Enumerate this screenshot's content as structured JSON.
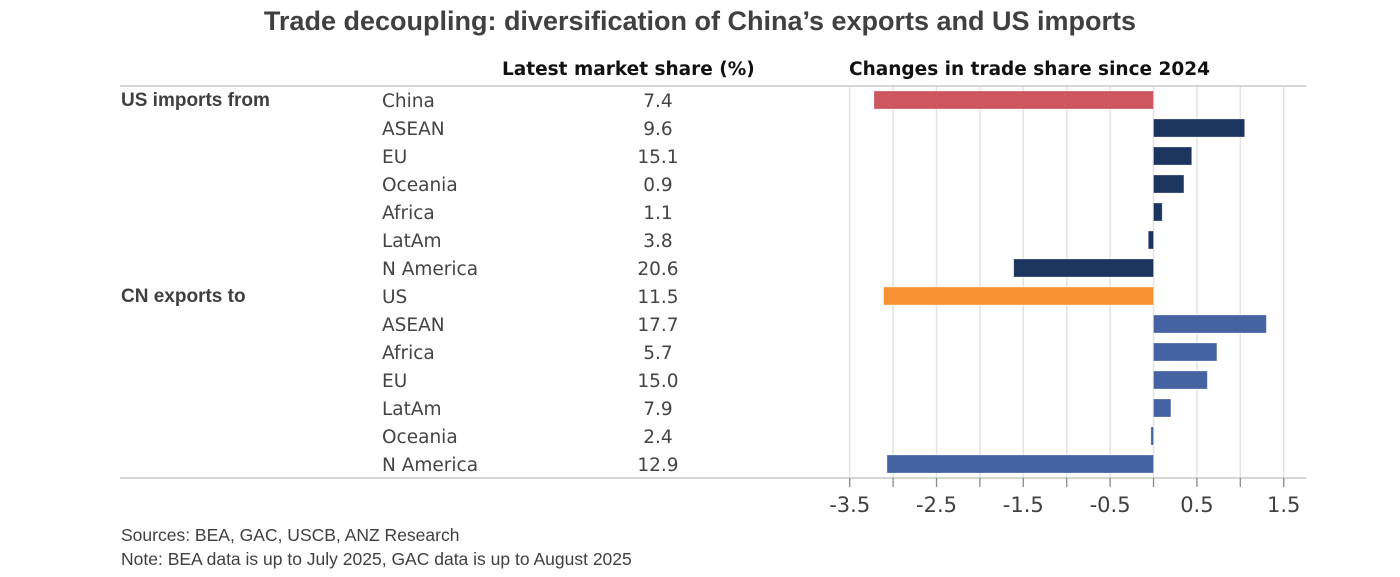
{
  "chart_data": {
    "type": "bar",
    "orientation": "horizontal",
    "title": "Trade decoupling: diversification of China’s exports and US imports",
    "column_headers": {
      "share": "Latest market share (%)",
      "change": "Changes in trade share since 2024"
    },
    "xlabel": "",
    "ylabel": "",
    "xlim": [
      -3.5,
      1.5
    ],
    "xticks": [
      -3.5,
      -2.5,
      -1.5,
      -0.5,
      0.5,
      1.5
    ],
    "xtick_labels": [
      "-3.5",
      "-2.5",
      "-1.5",
      "-0.5",
      "0.5",
      "1.5"
    ],
    "gridlines_every": 0.5,
    "grid": true,
    "groups": [
      {
        "label": "US imports from",
        "rows": [
          {
            "region": "China",
            "share": "7.4",
            "change": -3.22,
            "color": "#CD5660"
          },
          {
            "region": "ASEAN",
            "share": "9.6",
            "change": 1.05,
            "color": "#1C355E"
          },
          {
            "region": "EU",
            "share": "15.1",
            "change": 0.44,
            "color": "#1C355E"
          },
          {
            "region": "Oceania",
            "share": "0.9",
            "change": 0.35,
            "color": "#1C355E"
          },
          {
            "region": "Africa",
            "share": "1.1",
            "change": 0.1,
            "color": "#1C355E"
          },
          {
            "region": "LatAm",
            "share": "3.8",
            "change": -0.06,
            "color": "#1C355E"
          },
          {
            "region": "N America",
            "share": "20.6",
            "change": -1.61,
            "color": "#1C355E"
          }
        ]
      },
      {
        "label": "CN exports to",
        "rows": [
          {
            "region": "US",
            "share": "11.5",
            "change": -3.11,
            "color": "#F79232"
          },
          {
            "region": "ASEAN",
            "share": "17.7",
            "change": 1.3,
            "color": "#4563A2"
          },
          {
            "region": "Africa",
            "share": "5.7",
            "change": 0.73,
            "color": "#4563A2"
          },
          {
            "region": "EU",
            "share": "15.0",
            "change": 0.62,
            "color": "#4563A2"
          },
          {
            "region": "LatAm",
            "share": "7.9",
            "change": 0.2,
            "color": "#4563A2"
          },
          {
            "region": "Oceania",
            "share": "2.4",
            "change": -0.03,
            "color": "#4563A2"
          },
          {
            "region": "N America",
            "share": "12.9",
            "change": -3.07,
            "color": "#4563A2"
          }
        ]
      }
    ],
    "legend": "none"
  },
  "footer": {
    "sources": "Sources: BEA, GAC, USCB, ANZ Research",
    "note": "Note: BEA data is up to July 2025, GAC data is up to August 2025"
  }
}
